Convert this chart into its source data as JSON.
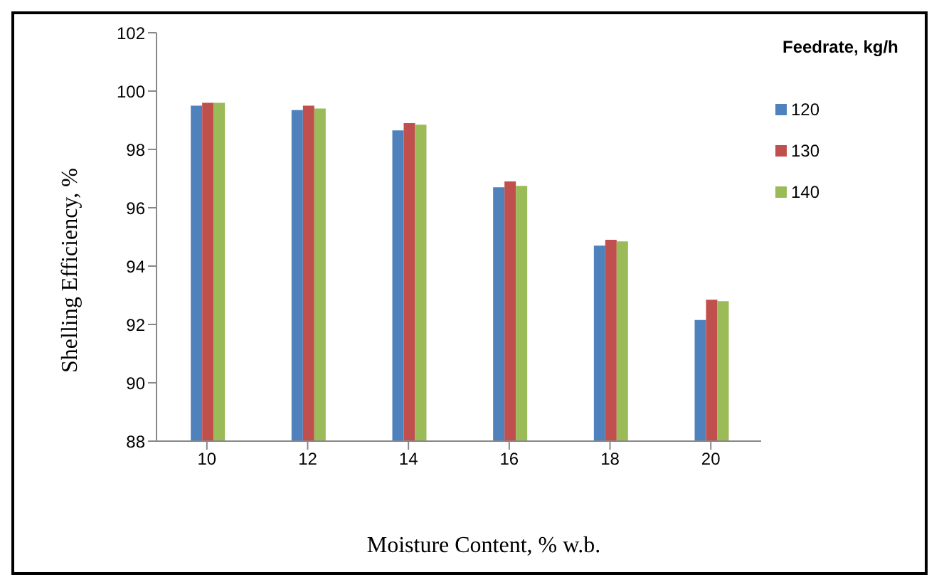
{
  "chart_data": {
    "type": "bar",
    "xlabel": "Moisture Content, % w.b.",
    "ylabel": "Shelling Efficiency, %",
    "legend_title": "Feedrate, kg/h",
    "categories": [
      "10",
      "12",
      "14",
      "16",
      "18",
      "20"
    ],
    "series": [
      {
        "name": "120",
        "color": "#4f81bd",
        "values": [
          99.5,
          99.35,
          98.65,
          96.7,
          94.7,
          92.15
        ]
      },
      {
        "name": "130",
        "color": "#c0504d",
        "values": [
          99.6,
          99.5,
          98.9,
          96.9,
          94.9,
          92.85
        ]
      },
      {
        "name": "140",
        "color": "#9bbb59",
        "values": [
          99.6,
          99.4,
          98.85,
          96.75,
          94.85,
          92.8
        ]
      }
    ],
    "ylim": [
      88,
      102
    ],
    "yticks": [
      88,
      90,
      92,
      94,
      96,
      98,
      100,
      102
    ],
    "grid": false,
    "legend": "right"
  }
}
